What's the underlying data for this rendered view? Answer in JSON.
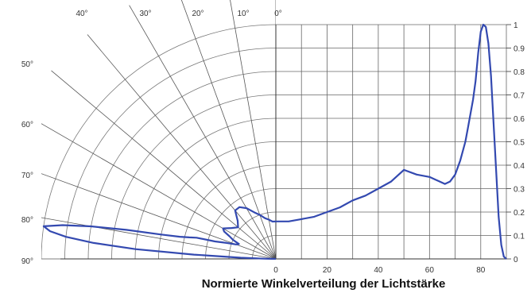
{
  "chart_data": [
    {
      "type": "polar",
      "angle_unit": "°",
      "angle_labels": [
        "0°",
        "10°",
        "20°",
        "30°",
        "40°",
        "50°",
        "60°",
        "70°",
        "80°",
        "90°"
      ],
      "angle_range": [
        0,
        90
      ],
      "r_range": [
        0,
        1
      ],
      "series": [
        {
          "angle": [
            0,
            5,
            10,
            15,
            20,
            25,
            30,
            35,
            40,
            45,
            50,
            55,
            60,
            62,
            64,
            66,
            68,
            70,
            72,
            74,
            75,
            76,
            77,
            78,
            79,
            80,
            81,
            82,
            83,
            84,
            85,
            86,
            87,
            88,
            89,
            90
          ],
          "r": [
            0.16,
            0.16,
            0.17,
            0.18,
            0.2,
            0.22,
            0.25,
            0.27,
            0.27,
            0.23,
            0.21,
            0.23,
            0.26,
            0.25,
            0.22,
            0.2,
            0.17,
            0.18,
            0.22,
            0.27,
            0.35,
            0.38,
            0.42,
            0.5,
            0.65,
            0.8,
            0.92,
            1.0,
            0.97,
            0.9,
            0.78,
            0.6,
            0.35,
            0.15,
            0.05,
            0.0
          ],
          "color": "#3349b0"
        }
      ]
    },
    {
      "type": "line",
      "title": "Normierte Winkelverteilung der Lichtstärke",
      "xlim": [
        0,
        90
      ],
      "ylim": [
        0,
        1
      ],
      "x_ticks": [
        "0",
        "20",
        "40",
        "60",
        "80"
      ],
      "y_ticks": [
        "0",
        "0.1",
        "0.2",
        "0.3",
        "0.4",
        "0.5",
        "0.6",
        "0.7",
        "0.8",
        "0.9",
        "1"
      ],
      "grid": true,
      "series": [
        {
          "x": [
            0,
            5,
            10,
            15,
            20,
            25,
            30,
            35,
            40,
            45,
            50,
            55,
            60,
            62,
            64,
            66,
            68,
            70,
            72,
            74,
            75,
            76,
            77,
            78,
            79,
            80,
            81,
            82,
            83,
            84,
            85,
            86,
            87,
            88,
            89,
            90
          ],
          "y": [
            0.16,
            0.16,
            0.17,
            0.18,
            0.2,
            0.22,
            0.25,
            0.27,
            0.3,
            0.33,
            0.38,
            0.36,
            0.35,
            0.34,
            0.33,
            0.32,
            0.33,
            0.36,
            0.42,
            0.5,
            0.56,
            0.62,
            0.68,
            0.76,
            0.88,
            0.97,
            1.0,
            0.99,
            0.92,
            0.78,
            0.58,
            0.38,
            0.18,
            0.06,
            0.01,
            0.0
          ],
          "color": "#3349b0"
        }
      ]
    }
  ]
}
